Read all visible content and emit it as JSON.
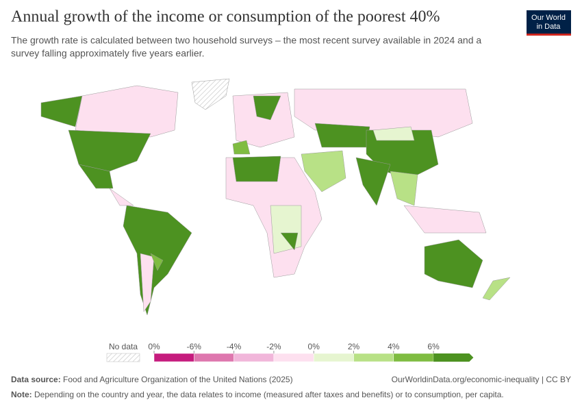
{
  "header": {
    "title": "Annual growth of the income or consumption of the poorest 40%",
    "subtitle_lines": [
      "The growth rate is calculated between two household surveys – the most recent survey available in 2024 and a",
      "survey falling approximately five years earlier."
    ],
    "logo_lines": [
      "Our World",
      "in Data"
    ]
  },
  "legend": {
    "no_data": "No data",
    "labels": [
      "0%",
      "-6%",
      "-4%",
      "-2%",
      "0%",
      "2%",
      "4%",
      "6%"
    ],
    "colors": [
      "#c51b7d",
      "#de77ae",
      "#f1b6da",
      "#fde0ef",
      "#e6f5d0",
      "#b8e186",
      "#7fbc41",
      "#4d9221"
    ]
  },
  "footer": {
    "source_label": "Data source:",
    "source": "Food and Agriculture Organization of the United Nations (2025)",
    "url": "OurWorldinData.org/economic-inequality | CC BY",
    "note_label": "Note:",
    "note": "Depending on the country and year, the data relates to income (measured after taxes and benefits) or to consumption, per capita."
  }
}
